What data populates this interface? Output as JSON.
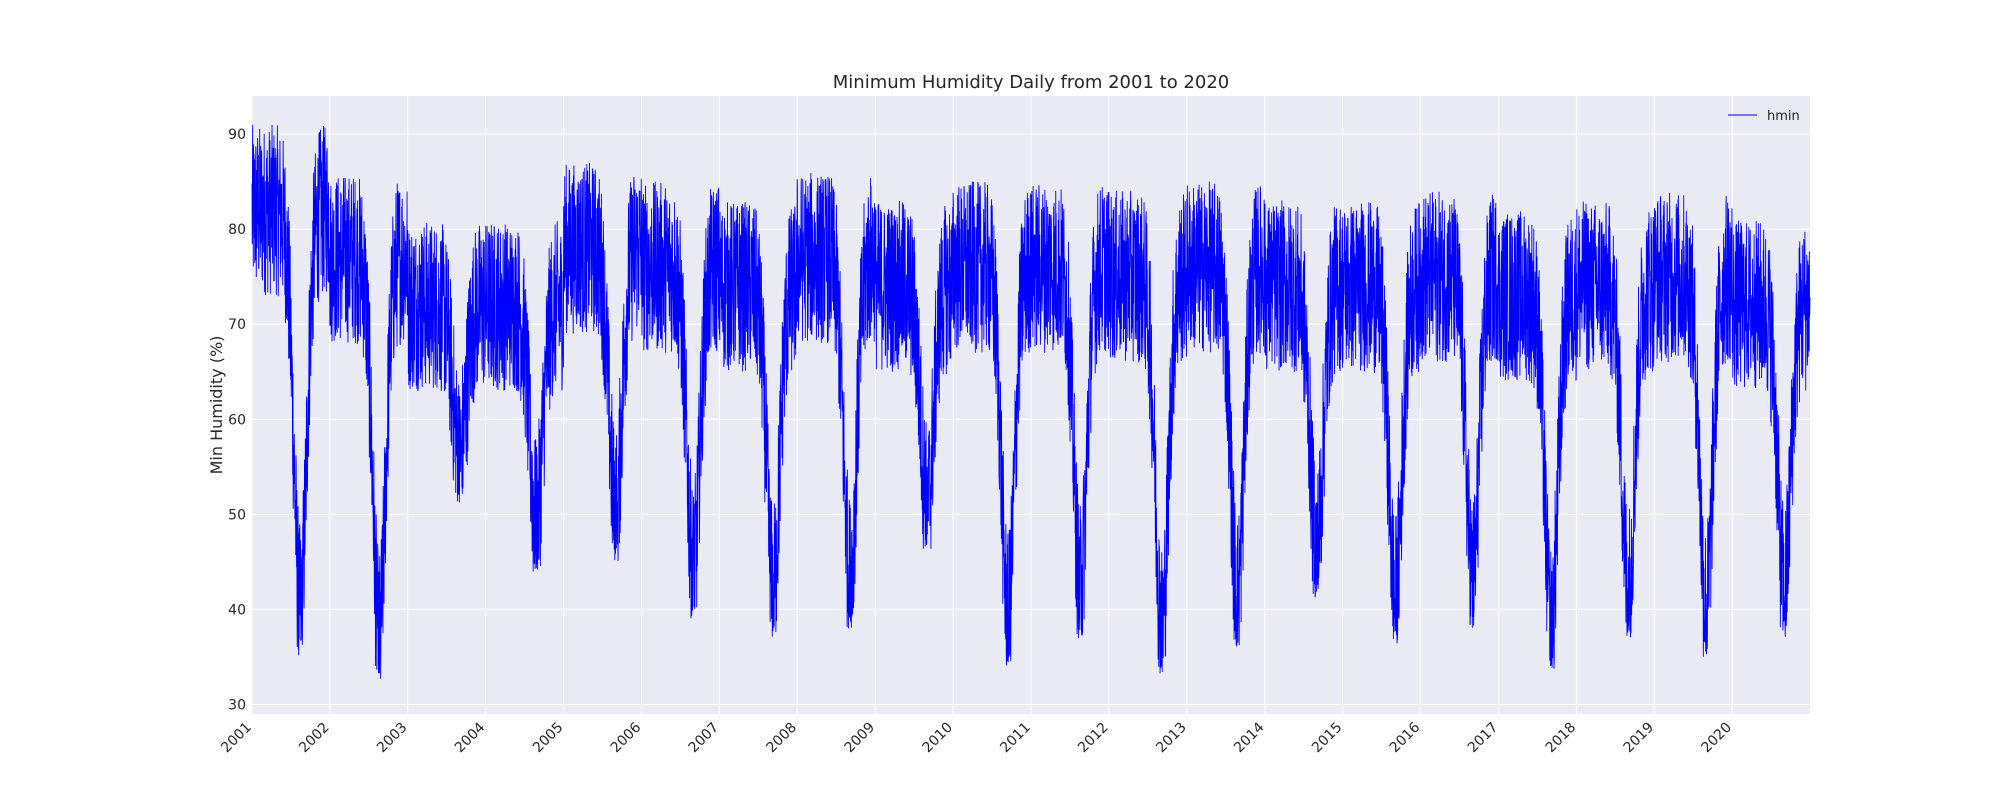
{
  "chart_data": {
    "type": "line",
    "title": "Minimum Humidity Daily from 2001 to 2020",
    "xlabel": "",
    "ylabel": "Min Humidity (%)",
    "xlim": [
      "2001-01-01",
      "2020-12-31"
    ],
    "ylim": [
      29,
      94
    ],
    "x_tick_labels": [
      "2001",
      "2002",
      "2003",
      "2004",
      "2005",
      "2006",
      "2007",
      "2008",
      "2009",
      "2010",
      "2011",
      "2012",
      "2013",
      "2014",
      "2015",
      "2016",
      "2017",
      "2018",
      "2019",
      "2020"
    ],
    "y_ticks": [
      30,
      40,
      50,
      60,
      70,
      80,
      90
    ],
    "grid": true,
    "legend": {
      "position": "top-right",
      "entries": [
        "hmin"
      ]
    },
    "series": [
      {
        "name": "hmin",
        "color": "#0000ff",
        "frequency": "daily",
        "yearly_stats": [
          {
            "year": 2001,
            "max": 91,
            "min": 35,
            "dry_min_date": "2001-08-15"
          },
          {
            "year": 2002,
            "max": 86,
            "min": 32,
            "dry_min_date": "2002-08-20"
          },
          {
            "year": 2003,
            "max": 81,
            "min": 51,
            "dry_min_date": "2003-09-01"
          },
          {
            "year": 2004,
            "max": 81,
            "min": 44,
            "dry_min_date": "2004-08-25"
          },
          {
            "year": 2005,
            "max": 87,
            "min": 45,
            "dry_min_date": "2005-09-01"
          },
          {
            "year": 2006,
            "max": 85,
            "min": 39,
            "dry_min_date": "2006-09-01"
          },
          {
            "year": 2007,
            "max": 83,
            "min": 37,
            "dry_min_date": "2007-09-10"
          },
          {
            "year": 2008,
            "max": 86,
            "min": 38,
            "dry_min_date": "2008-09-05"
          },
          {
            "year": 2009,
            "max": 83,
            "min": 46,
            "dry_min_date": "2009-09-01"
          },
          {
            "year": 2010,
            "max": 85,
            "min": 34,
            "dry_min_date": "2010-09-15"
          },
          {
            "year": 2011,
            "max": 85,
            "min": 37,
            "dry_min_date": "2011-08-20"
          },
          {
            "year": 2012,
            "max": 84,
            "min": 33,
            "dry_min_date": "2012-09-05"
          },
          {
            "year": 2013,
            "max": 85,
            "min": 36,
            "dry_min_date": "2013-08-25"
          },
          {
            "year": 2014,
            "max": 83,
            "min": 41,
            "dry_min_date": "2014-09-01"
          },
          {
            "year": 2015,
            "max": 83,
            "min": 36,
            "dry_min_date": "2015-09-05"
          },
          {
            "year": 2016,
            "max": 84,
            "min": 38,
            "dry_min_date": "2016-09-01"
          },
          {
            "year": 2017,
            "max": 82,
            "min": 33,
            "dry_min_date": "2017-09-05"
          },
          {
            "year": 2018,
            "max": 83,
            "min": 37,
            "dry_min_date": "2018-09-01"
          },
          {
            "year": 2019,
            "max": 84,
            "min": 35,
            "dry_min_date": "2019-09-01"
          },
          {
            "year": 2020,
            "max": 81,
            "min": 37,
            "dry_min_date": "2020-09-01"
          }
        ]
      }
    ]
  }
}
